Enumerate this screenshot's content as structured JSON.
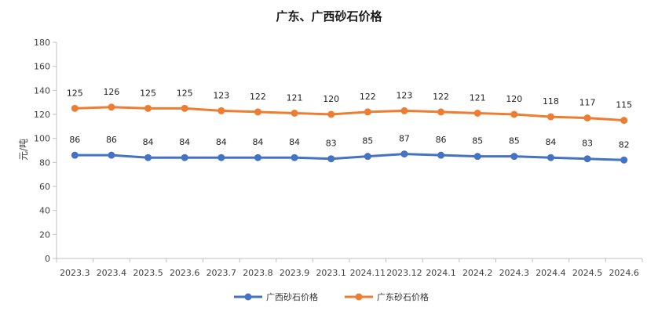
{
  "chart_data": {
    "type": "line",
    "title": "广东、广西砂石价格",
    "ylabel": "元/吨",
    "xlabel": "",
    "ylim": [
      0,
      180
    ],
    "yticks": [
      0,
      20,
      40,
      60,
      80,
      100,
      120,
      140,
      160,
      180
    ],
    "categories": [
      "2023.3",
      "2023.4",
      "2023.5",
      "2023.6",
      "2023.7",
      "2023.8",
      "2023.9",
      "2023.1",
      "2024.11",
      "2023.12",
      "2024.1",
      "2024.2",
      "2024.3",
      "2024.4",
      "2024.5",
      "2024.6"
    ],
    "series": [
      {
        "name": "广西砂石价格",
        "color": "#4472C4",
        "values": [
          86,
          86,
          84,
          84,
          84,
          84,
          84,
          83,
          85,
          87,
          86,
          85,
          85,
          84,
          83,
          82
        ]
      },
      {
        "name": "广东砂石价格",
        "color": "#ED7D31",
        "values": [
          125,
          126,
          125,
          125,
          123,
          122,
          121,
          120,
          122,
          123,
          122,
          121,
          120,
          118,
          117,
          115
        ]
      }
    ],
    "grid": false,
    "legend_position": "bottom",
    "data_labels": true
  }
}
